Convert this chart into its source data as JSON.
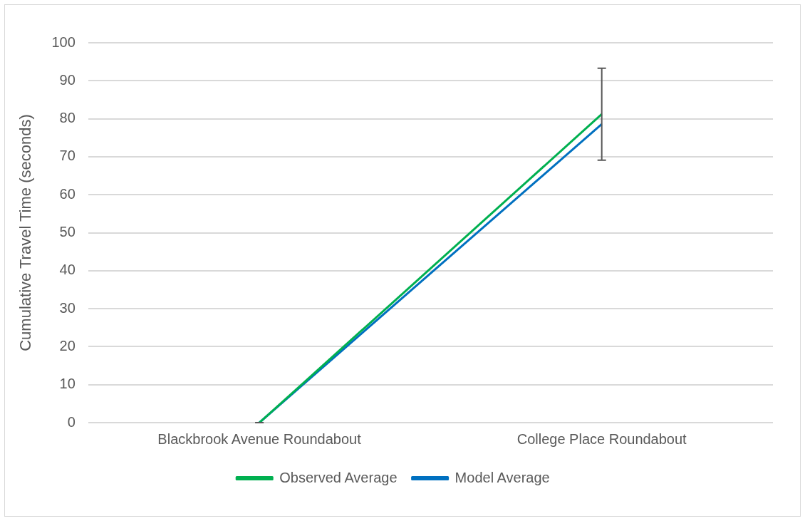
{
  "chart_data": {
    "type": "line",
    "ylabel": "Cumulative Travel Time (seconds)",
    "categories": [
      "Blackbrook Avenue Roundabout",
      "College Place Roundabout"
    ],
    "series": [
      {
        "name": "Observed Average",
        "color": "#00b050",
        "values": [
          0,
          81.2
        ],
        "errors": [
          0,
          12.1
        ]
      },
      {
        "name": "Model Average",
        "color": "#0070c0",
        "values": [
          0,
          78.6
        ]
      }
    ],
    "ylim": [
      0,
      100
    ],
    "yticks": [
      0,
      10,
      20,
      30,
      40,
      50,
      60,
      70,
      80,
      90,
      100
    ],
    "grid": "y",
    "legend": "bottom",
    "marker": "none",
    "line_style": "solid"
  }
}
